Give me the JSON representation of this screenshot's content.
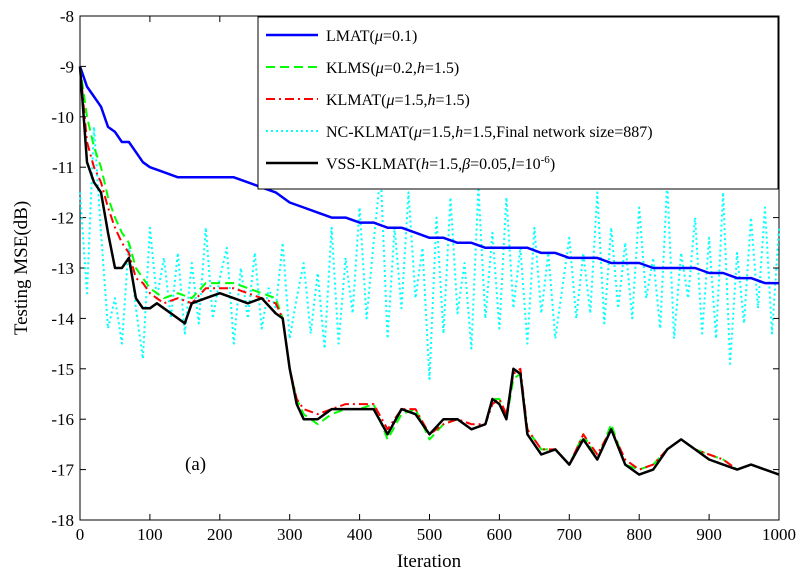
{
  "chart_data": {
    "type": "line",
    "xlabel": "Iteration",
    "ylabel": "Testing MSE(dB)",
    "xlim": [
      0,
      1000
    ],
    "ylim": [
      -18,
      -8
    ],
    "xticks": [
      0,
      100,
      200,
      300,
      400,
      500,
      600,
      700,
      800,
      900,
      1000
    ],
    "yticks": [
      -8,
      -9,
      -10,
      -11,
      -12,
      -13,
      -14,
      -15,
      -16,
      -17,
      -18
    ],
    "grid": false,
    "legend_position": "top-right",
    "annotation": "(a)",
    "series": [
      {
        "name": "LMAT(μ=0.1)",
        "legend": {
          "base": "LMAT(",
          "parts": [
            [
              "i",
              "μ"
            ],
            [
              "n",
              "=0.1)"
            ]
          ]
        },
        "color": "#0000ff",
        "style": "solid",
        "x": [
          0,
          10,
          20,
          30,
          40,
          50,
          60,
          70,
          80,
          90,
          100,
          120,
          140,
          160,
          180,
          200,
          220,
          240,
          260,
          280,
          300,
          320,
          340,
          360,
          380,
          400,
          420,
          440,
          460,
          480,
          500,
          520,
          540,
          560,
          580,
          600,
          620,
          640,
          660,
          680,
          700,
          720,
          740,
          760,
          780,
          800,
          820,
          840,
          860,
          880,
          900,
          920,
          940,
          960,
          980,
          1000
        ],
        "y": [
          -9.0,
          -9.4,
          -9.6,
          -9.8,
          -10.2,
          -10.3,
          -10.5,
          -10.5,
          -10.7,
          -10.9,
          -11.0,
          -11.1,
          -11.2,
          -11.2,
          -11.2,
          -11.2,
          -11.2,
          -11.3,
          -11.4,
          -11.5,
          -11.7,
          -11.8,
          -11.9,
          -12.0,
          -12.0,
          -12.1,
          -12.1,
          -12.2,
          -12.2,
          -12.3,
          -12.4,
          -12.4,
          -12.5,
          -12.5,
          -12.6,
          -12.6,
          -12.6,
          -12.6,
          -12.7,
          -12.7,
          -12.8,
          -12.8,
          -12.8,
          -12.9,
          -12.9,
          -12.9,
          -13.0,
          -13.0,
          -13.0,
          -13.0,
          -13.1,
          -13.1,
          -13.2,
          -13.2,
          -13.3,
          -13.3
        ]
      },
      {
        "name": "KLMS(μ=0.2,h=1.5)",
        "legend": {
          "base": "KLMS(",
          "parts": [
            [
              "i",
              "μ"
            ],
            [
              "n",
              "=0.2,"
            ],
            [
              "i",
              "h"
            ],
            [
              "n",
              "=1.5)"
            ]
          ]
        },
        "color": "#00ff00",
        "style": "dashed",
        "x": [
          0,
          10,
          20,
          30,
          40,
          50,
          60,
          70,
          80,
          90,
          100,
          120,
          140,
          160,
          180,
          200,
          220,
          240,
          260,
          280,
          290,
          300,
          310,
          320,
          340,
          360,
          380,
          400,
          420,
          440,
          460,
          480,
          500,
          520,
          540,
          560,
          580,
          590,
          600,
          610,
          620,
          630,
          640,
          660,
          680,
          700,
          720,
          740,
          760,
          780,
          800,
          820,
          840,
          860,
          880,
          900,
          920,
          940,
          960,
          980,
          1000
        ],
        "y": [
          -9.0,
          -10.0,
          -10.6,
          -11.0,
          -11.6,
          -12.0,
          -12.3,
          -12.5,
          -13.0,
          -13.2,
          -13.4,
          -13.6,
          -13.5,
          -13.6,
          -13.3,
          -13.3,
          -13.3,
          -13.4,
          -13.5,
          -13.6,
          -14.0,
          -15.0,
          -15.6,
          -15.9,
          -16.1,
          -15.9,
          -15.8,
          -15.8,
          -15.7,
          -16.4,
          -15.9,
          -15.8,
          -16.4,
          -16.1,
          -16.0,
          -16.2,
          -16.1,
          -15.6,
          -15.6,
          -16.0,
          -15.2,
          -15.1,
          -16.2,
          -16.6,
          -16.6,
          -16.9,
          -16.3,
          -16.8,
          -16.1,
          -16.9,
          -17.0,
          -16.9,
          -16.6,
          -16.4,
          -16.6,
          -16.7,
          -16.8,
          -17.0,
          -16.9,
          -17.0,
          -17.1
        ]
      },
      {
        "name": "KLMAT(μ=1.5,h=1.5)",
        "legend": {
          "base": "KLMAT(",
          "parts": [
            [
              "i",
              "μ"
            ],
            [
              "n",
              "=1.5,"
            ],
            [
              "i",
              "h"
            ],
            [
              "n",
              "=1.5)"
            ]
          ]
        },
        "color": "#ff0000",
        "style": "dashdot",
        "x": [
          0,
          10,
          20,
          30,
          40,
          50,
          60,
          70,
          80,
          90,
          100,
          120,
          140,
          160,
          180,
          200,
          220,
          240,
          260,
          280,
          290,
          300,
          310,
          320,
          340,
          360,
          380,
          400,
          420,
          440,
          460,
          480,
          500,
          520,
          540,
          560,
          580,
          590,
          600,
          610,
          620,
          630,
          640,
          660,
          680,
          700,
          720,
          740,
          760,
          780,
          800,
          820,
          840,
          860,
          880,
          900,
          920,
          940,
          960,
          980,
          1000
        ],
        "y": [
          -9.0,
          -10.5,
          -11.0,
          -11.3,
          -11.8,
          -12.2,
          -12.5,
          -12.7,
          -13.2,
          -13.3,
          -13.5,
          -13.7,
          -13.6,
          -13.7,
          -13.4,
          -13.4,
          -13.4,
          -13.5,
          -13.6,
          -13.7,
          -14.0,
          -15.0,
          -15.6,
          -15.8,
          -15.9,
          -15.8,
          -15.7,
          -15.7,
          -15.7,
          -16.2,
          -15.8,
          -15.8,
          -16.3,
          -16.1,
          -16.0,
          -16.1,
          -16.1,
          -15.7,
          -15.6,
          -15.9,
          -15.1,
          -15.0,
          -16.2,
          -16.6,
          -16.6,
          -16.9,
          -16.3,
          -16.7,
          -16.2,
          -16.8,
          -17.0,
          -16.9,
          -16.6,
          -16.4,
          -16.6,
          -16.7,
          -16.8,
          -17.0,
          -16.9,
          -17.0,
          -17.1
        ]
      },
      {
        "name": "NC-KLMAT(μ=1.5,h=1.5,Final network size=887)",
        "legend": {
          "base": "NC-KLMAT(",
          "parts": [
            [
              "i",
              "μ"
            ],
            [
              "n",
              "=1.5,"
            ],
            [
              "i",
              "h"
            ],
            [
              "n",
              "=1.5,Final network size=887)"
            ]
          ]
        },
        "color": "#00ffff",
        "style": "dotted",
        "x": [
          0,
          10,
          20,
          30,
          40,
          50,
          60,
          70,
          80,
          90,
          100,
          110,
          120,
          130,
          140,
          150,
          160,
          170,
          180,
          190,
          200,
          210,
          220,
          230,
          240,
          250,
          260,
          270,
          280,
          290,
          300,
          310,
          320,
          330,
          340,
          350,
          360,
          370,
          380,
          390,
          400,
          410,
          420,
          430,
          440,
          450,
          460,
          470,
          480,
          490,
          500,
          510,
          520,
          530,
          540,
          550,
          560,
          570,
          580,
          590,
          600,
          610,
          620,
          630,
          640,
          650,
          660,
          670,
          680,
          690,
          700,
          710,
          720,
          730,
          740,
          750,
          760,
          770,
          780,
          790,
          800,
          810,
          820,
          830,
          840,
          850,
          860,
          870,
          880,
          890,
          900,
          910,
          920,
          930,
          940,
          950,
          960,
          970,
          980,
          990,
          1000
        ],
        "y": [
          -11.5,
          -13.5,
          -10.2,
          -12.3,
          -14.2,
          -13.6,
          -14.5,
          -12.5,
          -13.8,
          -14.8,
          -12.2,
          -13.6,
          -12.8,
          -14.0,
          -12.7,
          -14.3,
          -12.9,
          -14.1,
          -12.2,
          -14.0,
          -13.2,
          -12.6,
          -14.5,
          -13.0,
          -14.0,
          -12.7,
          -14.2,
          -13.4,
          -13.8,
          -12.5,
          -14.4,
          -13.6,
          -12.9,
          -14.3,
          -13.1,
          -14.6,
          -12.2,
          -14.5,
          -12.8,
          -13.9,
          -11.8,
          -14.0,
          -12.5,
          -11.1,
          -14.4,
          -12.2,
          -13.8,
          -11.5,
          -13.6,
          -12.6,
          -15.2,
          -12.0,
          -14.3,
          -11.6,
          -13.9,
          -12.9,
          -14.6,
          -11.4,
          -14.0,
          -12.3,
          -14.2,
          -11.6,
          -13.8,
          -12.6,
          -14.5,
          -12.2,
          -13.9,
          -12.7,
          -14.4,
          -13.4,
          -12.4,
          -14.0,
          -12.7,
          -13.9,
          -11.5,
          -14.1,
          -12.2,
          -13.8,
          -12.5,
          -14.0,
          -11.8,
          -13.6,
          -12.8,
          -14.2,
          -11.3,
          -14.4,
          -12.7,
          -13.6,
          -12.0,
          -14.3,
          -12.4,
          -14.4,
          -11.5,
          -14.9,
          -12.7,
          -14.1,
          -12.0,
          -13.8,
          -11.8,
          -14.3,
          -12.2
        ]
      },
      {
        "name": "VSS-KLMAT(h=1.5,β=0.05,l=10-6)",
        "legend": {
          "base": "VSS-KLMAT(",
          "parts": [
            [
              "i",
              "h"
            ],
            [
              "n",
              "=1.5,"
            ],
            [
              "i",
              "β"
            ],
            [
              "n",
              "=0.05,"
            ],
            [
              "i",
              "l"
            ],
            [
              "n",
              "=10"
            ],
            [
              "sup",
              "-6"
            ],
            [
              "n",
              ")"
            ]
          ]
        },
        "color": "#000000",
        "style": "solid",
        "x": [
          0,
          10,
          20,
          30,
          40,
          50,
          60,
          70,
          80,
          90,
          100,
          110,
          120,
          140,
          150,
          160,
          180,
          200,
          220,
          240,
          260,
          280,
          290,
          300,
          310,
          320,
          340,
          360,
          380,
          400,
          420,
          440,
          460,
          480,
          500,
          520,
          540,
          560,
          580,
          590,
          600,
          610,
          620,
          630,
          640,
          660,
          680,
          700,
          720,
          740,
          760,
          780,
          800,
          820,
          840,
          860,
          880,
          900,
          920,
          940,
          960,
          980,
          1000
        ],
        "y": [
          -9.0,
          -10.9,
          -11.3,
          -11.5,
          -12.3,
          -13.0,
          -13.0,
          -12.8,
          -13.6,
          -13.8,
          -13.8,
          -13.7,
          -13.8,
          -14.0,
          -14.1,
          -13.7,
          -13.6,
          -13.5,
          -13.6,
          -13.7,
          -13.6,
          -13.9,
          -14.0,
          -15.0,
          -15.7,
          -16.0,
          -16.0,
          -15.8,
          -15.8,
          -15.8,
          -15.8,
          -16.3,
          -15.8,
          -15.9,
          -16.3,
          -16.0,
          -16.0,
          -16.2,
          -16.1,
          -15.6,
          -15.7,
          -16.0,
          -15.0,
          -15.1,
          -16.3,
          -16.7,
          -16.6,
          -16.9,
          -16.4,
          -16.8,
          -16.2,
          -16.9,
          -17.1,
          -17.0,
          -16.6,
          -16.4,
          -16.6,
          -16.8,
          -16.9,
          -17.0,
          -16.9,
          -17.0,
          -17.1
        ]
      }
    ]
  }
}
